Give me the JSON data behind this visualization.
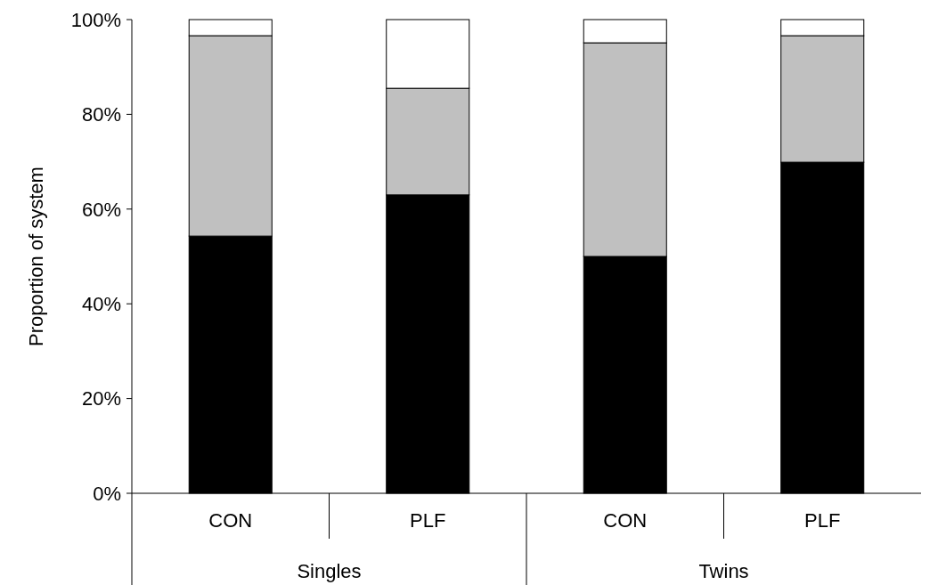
{
  "chart_data": {
    "type": "bar",
    "stacked": true,
    "ylabel": "Proportion of system",
    "categories": [
      "CON",
      "PLF",
      "CON",
      "PLF"
    ],
    "annotations": [
      "Singles",
      "Twins"
    ],
    "series": [
      {
        "color": "#000000",
        "values": [
          54.3,
          63.0,
          50.0,
          69.9
        ]
      },
      {
        "color": "#c0c0c0",
        "values": [
          42.3,
          22.5,
          45.1,
          26.7
        ]
      },
      {
        "color": "#ffffff",
        "values": [
          3.4,
          14.5,
          4.9,
          3.4
        ]
      }
    ],
    "ylim": [
      0,
      100
    ],
    "yticks": [
      {
        "value": 0,
        "label": "0%"
      },
      {
        "value": 20,
        "label": "20%"
      },
      {
        "value": 40,
        "label": "40%"
      },
      {
        "value": 60,
        "label": "60%"
      },
      {
        "value": 80,
        "label": "80%"
      },
      {
        "value": 100,
        "label": "100%"
      }
    ],
    "grid": false
  }
}
